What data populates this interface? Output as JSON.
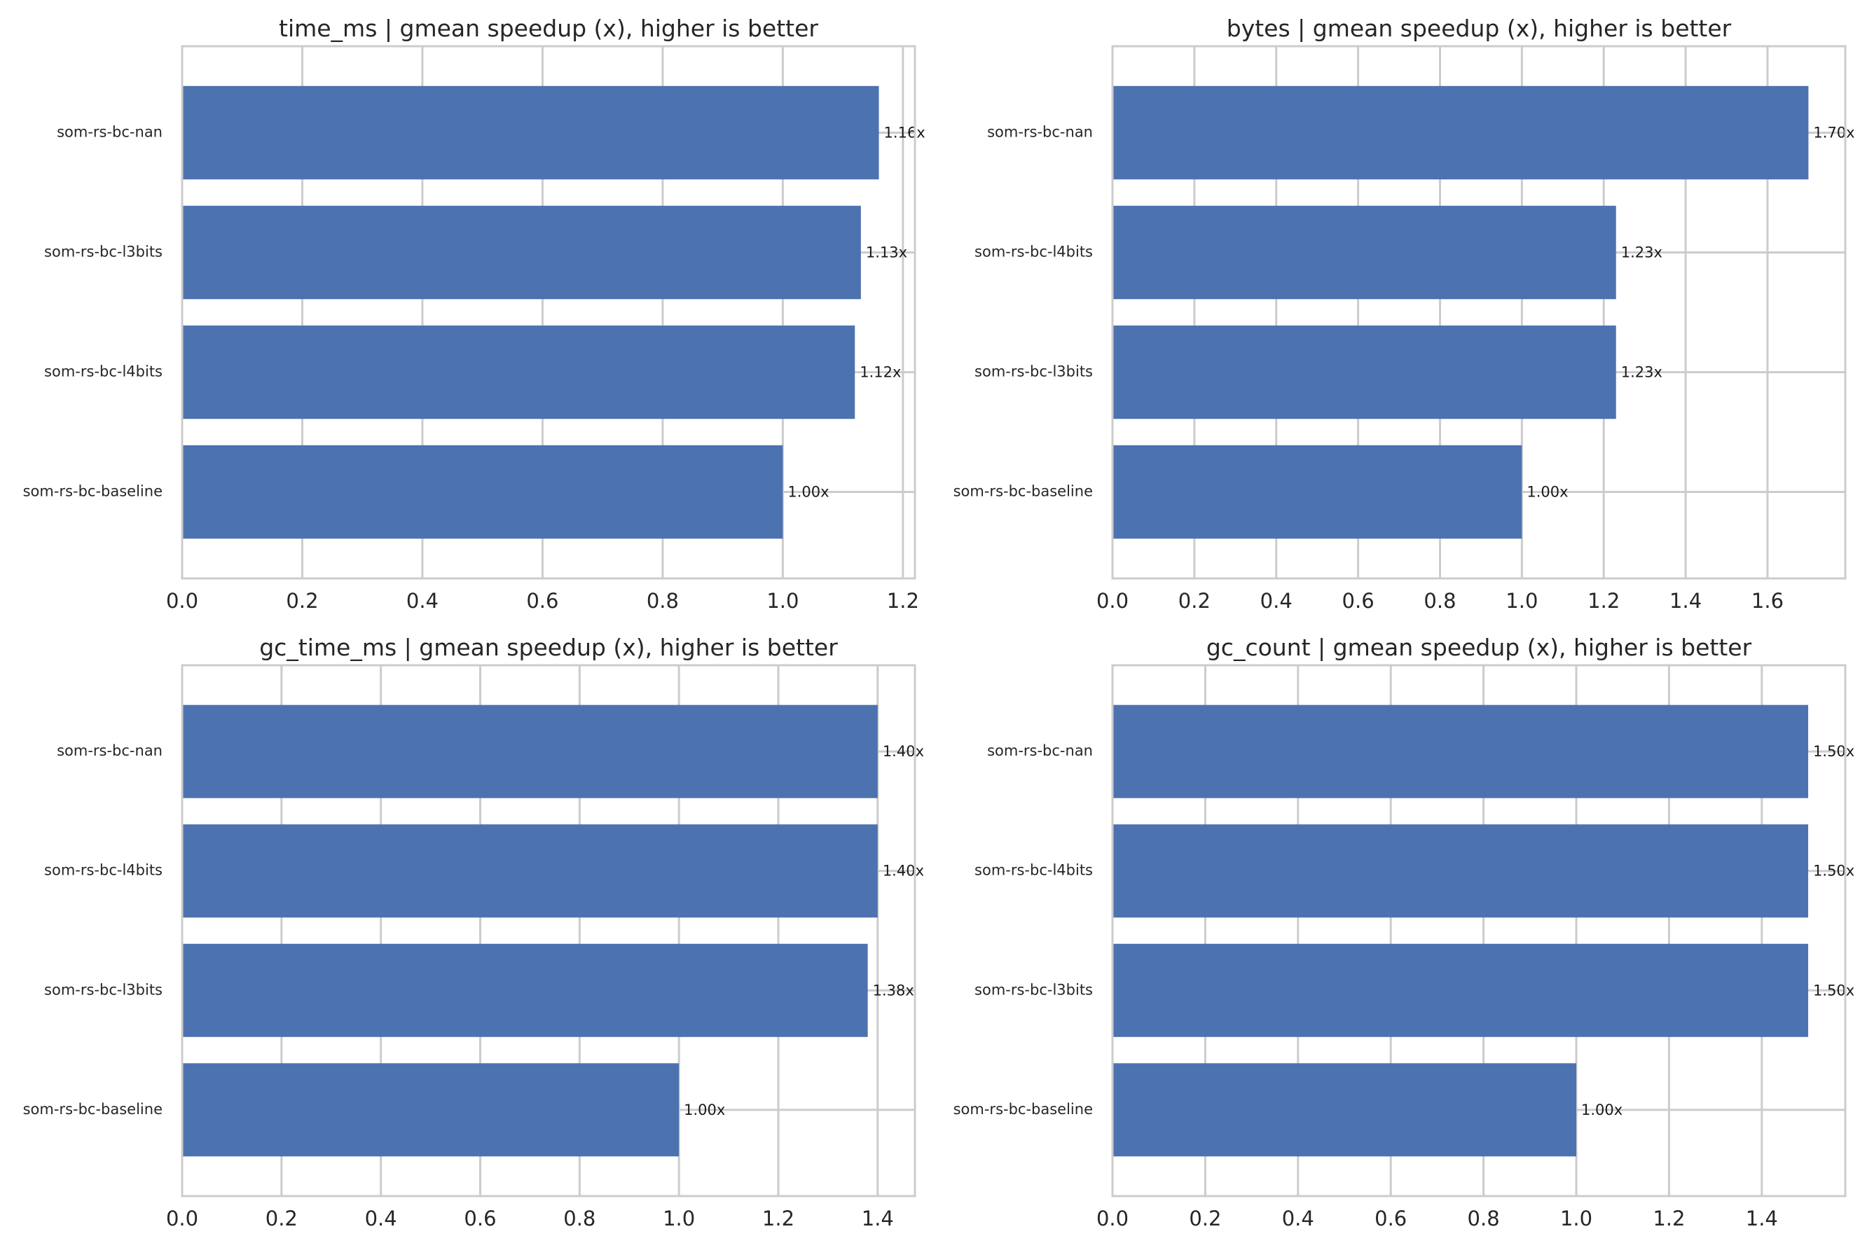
{
  "colors": {
    "bar": "#4c72b0",
    "grid": "#cccccc",
    "frame": "#cccccc",
    "text": "#262626"
  },
  "label_suffix": "x",
  "chart_data": [
    {
      "type": "bar",
      "orientation": "horizontal",
      "title": "time_ms | gmean speedup (x), higher is better",
      "categories": [
        "som-rs-bc-nan",
        "som-rs-bc-l3bits",
        "som-rs-bc-l4bits",
        "som-rs-bc-baseline"
      ],
      "values": [
        1.16,
        1.13,
        1.12,
        1.0
      ],
      "value_labels": [
        "1.16x",
        "1.13x",
        "1.12x",
        "1.00x"
      ],
      "xlim": [
        0,
        1.22
      ],
      "xticks": [
        0.0,
        0.2,
        0.4,
        0.6,
        0.8,
        1.0,
        1.2
      ],
      "xtick_labels": [
        "0.0",
        "0.2",
        "0.4",
        "0.6",
        "0.8",
        "1.0",
        "1.2"
      ],
      "xlabel": "",
      "ylabel": "",
      "grid": true,
      "legend": "none"
    },
    {
      "type": "bar",
      "orientation": "horizontal",
      "title": "bytes | gmean speedup (x), higher is better",
      "categories": [
        "som-rs-bc-nan",
        "som-rs-bc-l4bits",
        "som-rs-bc-l3bits",
        "som-rs-bc-baseline"
      ],
      "values": [
        1.7,
        1.23,
        1.23,
        1.0
      ],
      "value_labels": [
        "1.70x",
        "1.23x",
        "1.23x",
        "1.00x"
      ],
      "xlim": [
        0,
        1.79
      ],
      "xticks": [
        0.0,
        0.2,
        0.4,
        0.6,
        0.8,
        1.0,
        1.2,
        1.4,
        1.6
      ],
      "xtick_labels": [
        "0.0",
        "0.2",
        "0.4",
        "0.6",
        "0.8",
        "1.0",
        "1.2",
        "1.4",
        "1.6"
      ],
      "xlabel": "",
      "ylabel": "",
      "grid": true,
      "legend": "none"
    },
    {
      "type": "bar",
      "orientation": "horizontal",
      "title": "gc_time_ms | gmean speedup (x), higher is better",
      "categories": [
        "som-rs-bc-nan",
        "som-rs-bc-l4bits",
        "som-rs-bc-l3bits",
        "som-rs-bc-baseline"
      ],
      "values": [
        1.4,
        1.4,
        1.38,
        1.0
      ],
      "value_labels": [
        "1.40x",
        "1.40x",
        "1.38x",
        "1.00x"
      ],
      "xlim": [
        0,
        1.475
      ],
      "xticks": [
        0.0,
        0.2,
        0.4,
        0.6,
        0.8,
        1.0,
        1.2,
        1.4
      ],
      "xtick_labels": [
        "0.0",
        "0.2",
        "0.4",
        "0.6",
        "0.8",
        "1.0",
        "1.2",
        "1.4"
      ],
      "xlabel": "",
      "ylabel": "",
      "grid": true,
      "legend": "none"
    },
    {
      "type": "bar",
      "orientation": "horizontal",
      "title": "gc_count | gmean speedup (x), higher is better",
      "categories": [
        "som-rs-bc-nan",
        "som-rs-bc-l4bits",
        "som-rs-bc-l3bits",
        "som-rs-bc-baseline"
      ],
      "values": [
        1.5,
        1.5,
        1.5,
        1.0
      ],
      "value_labels": [
        "1.50x",
        "1.50x",
        "1.50x",
        "1.00x"
      ],
      "xlim": [
        0,
        1.58
      ],
      "xticks": [
        0.0,
        0.2,
        0.4,
        0.6,
        0.8,
        1.0,
        1.2,
        1.4
      ],
      "xtick_labels": [
        "0.0",
        "0.2",
        "0.4",
        "0.6",
        "0.8",
        "1.0",
        "1.2",
        "1.4"
      ],
      "xlabel": "",
      "ylabel": "",
      "grid": true,
      "legend": "none"
    }
  ]
}
